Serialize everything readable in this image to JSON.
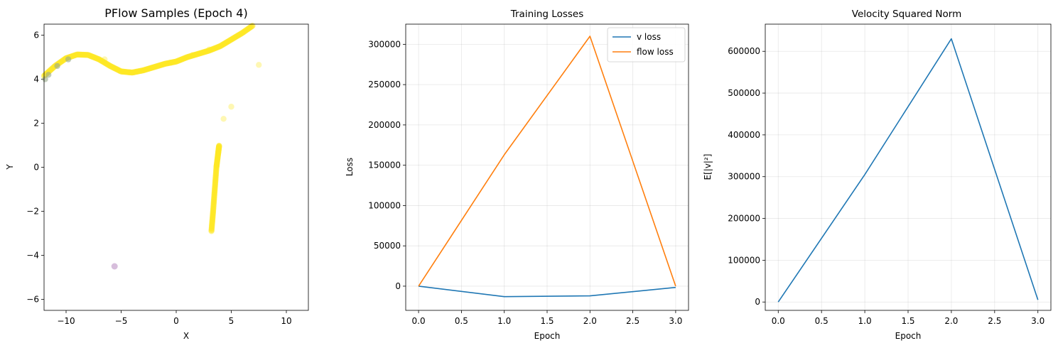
{
  "chart_data": [
    {
      "type": "scatter",
      "title": "PFlow Samples (Epoch 4)",
      "xlabel": "X",
      "ylabel": "Y",
      "xlim": [
        -12,
        12
      ],
      "ylim": [
        -6.5,
        6.5
      ],
      "xticks": [
        -10,
        -5,
        0,
        5,
        10
      ],
      "yticks": [
        -6,
        -4,
        -2,
        0,
        2,
        4,
        6
      ],
      "grid": false,
      "colors": {
        "bulk": "#fde725",
        "outlier": "#c9a8d0",
        "early": "#9aab8b"
      },
      "series": [
        {
          "values_curve": [
            [
              -12.0,
              4.15
            ],
            [
              -11.0,
              4.6
            ],
            [
              -10.0,
              4.95
            ],
            [
              -9.0,
              5.12
            ],
            [
              -8.0,
              5.1
            ],
            [
              -7.0,
              4.9
            ],
            [
              -6.0,
              4.6
            ],
            [
              -5.0,
              4.35
            ],
            [
              -4.0,
              4.3
            ],
            [
              -3.0,
              4.4
            ],
            [
              -2.0,
              4.55
            ],
            [
              -1.0,
              4.7
            ],
            [
              0.0,
              4.8
            ],
            [
              1.0,
              5.0
            ],
            [
              2.0,
              5.15
            ],
            [
              3.0,
              5.3
            ],
            [
              4.0,
              5.5
            ],
            [
              5.0,
              5.8
            ],
            [
              6.0,
              6.1
            ],
            [
              7.0,
              6.45
            ]
          ],
          "values_strip": [
            [
              3.2,
              -2.9
            ],
            [
              3.35,
              -2.0
            ],
            [
              3.5,
              -1.0
            ],
            [
              3.65,
              0.0
            ],
            [
              3.8,
              0.6
            ],
            [
              3.9,
              1.0
            ]
          ],
          "values_sparse": [
            [
              4.3,
              2.2
            ],
            [
              5.0,
              2.75
            ],
            [
              7.5,
              4.65
            ],
            [
              -0.5,
              4.75
            ],
            [
              1.5,
              5.1
            ],
            [
              3.0,
              5.35
            ],
            [
              -6.5,
              4.9
            ],
            [
              -10.0,
              4.95
            ]
          ],
          "values_outlier": [
            [
              -5.6,
              -4.5
            ]
          ],
          "values_early": [
            [
              -11.9,
              4.0
            ],
            [
              -11.6,
              4.2
            ],
            [
              -10.8,
              4.6
            ],
            [
              -9.8,
              4.9
            ]
          ]
        }
      ]
    },
    {
      "type": "line",
      "title": "Training Losses",
      "xlabel": "Epoch",
      "ylabel": "Loss",
      "xlim": [
        -0.15,
        3.15
      ],
      "ylim": [
        -30000,
        325000
      ],
      "xticks": [
        0.0,
        0.5,
        1.0,
        1.5,
        2.0,
        2.5,
        3.0
      ],
      "xtick_labels": [
        "0.0",
        "0.5",
        "1.0",
        "1.5",
        "2.0",
        "2.5",
        "3.0"
      ],
      "yticks": [
        0,
        50000,
        100000,
        150000,
        200000,
        250000,
        300000
      ],
      "ytick_labels": [
        "0",
        "50000",
        "100000",
        "150000",
        "200000",
        "250000",
        "300000"
      ],
      "grid": true,
      "legend": "top-right",
      "x": [
        0,
        1,
        2,
        3
      ],
      "series": [
        {
          "name": "v loss",
          "color": "#1f77b4",
          "values": [
            0,
            -13000,
            -12000,
            -1500
          ]
        },
        {
          "name": "flow loss",
          "color": "#ff7f0e",
          "values": [
            0,
            163000,
            310000,
            0
          ]
        }
      ]
    },
    {
      "type": "line",
      "title": "Velocity Squared Norm",
      "xlabel": "Epoch",
      "ylabel": "E[|v|²]",
      "xlim": [
        -0.15,
        3.15
      ],
      "ylim": [
        -20000,
        665000
      ],
      "xticks": [
        0.0,
        0.5,
        1.0,
        1.5,
        2.0,
        2.5,
        3.0
      ],
      "xtick_labels": [
        "0.0",
        "0.5",
        "1.0",
        "1.5",
        "2.0",
        "2.5",
        "3.0"
      ],
      "yticks": [
        0,
        100000,
        200000,
        300000,
        400000,
        500000,
        600000
      ],
      "ytick_labels": [
        "0",
        "100000",
        "200000",
        "300000",
        "400000",
        "500000",
        "600000"
      ],
      "grid": true,
      "x": [
        0,
        1,
        2,
        3
      ],
      "series": [
        {
          "color": "#1f77b4",
          "values": [
            0,
            305000,
            630000,
            5000
          ]
        }
      ]
    }
  ]
}
